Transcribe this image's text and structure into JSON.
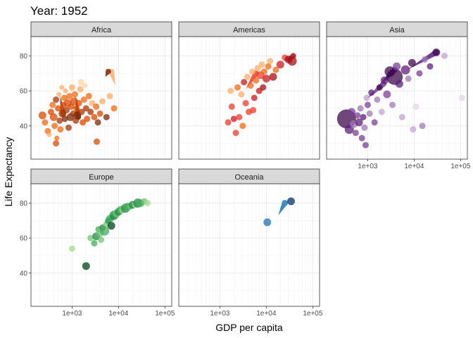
{
  "chart_data": {
    "type": "scatter",
    "title": "Year: 1952",
    "xlabel": "GDP per capita",
    "ylabel": "Life Expectancy",
    "x_scale": "log10",
    "xlim": [
      130,
      140000
    ],
    "ylim": [
      21,
      91
    ],
    "x_ticks": [
      1000,
      10000,
      100000
    ],
    "x_tick_labels": [
      "1e+03",
      "1e+04",
      "1e+05"
    ],
    "y_ticks": [
      40,
      60,
      80
    ],
    "y_tick_labels": [
      "40",
      "60",
      "80"
    ],
    "grid": true,
    "facets": [
      {
        "name": "Africa",
        "palette": [
          "#fdd49e",
          "#fdae6b",
          "#f16913",
          "#d94801",
          "#a63603",
          "#7f2704"
        ],
        "points": [
          [
            230,
            46,
            4,
            3
          ],
          [
            260,
            42,
            3,
            2
          ],
          [
            300,
            37,
            3,
            2
          ],
          [
            320,
            35,
            2,
            1
          ],
          [
            350,
            48,
            3,
            3
          ],
          [
            380,
            52,
            3,
            2
          ],
          [
            400,
            45,
            4,
            3
          ],
          [
            420,
            40,
            3,
            2
          ],
          [
            450,
            55,
            3,
            4
          ],
          [
            470,
            33,
            2,
            2
          ],
          [
            500,
            50,
            3,
            3
          ],
          [
            520,
            58,
            2,
            1
          ],
          [
            540,
            43,
            3,
            4
          ],
          [
            560,
            38,
            3,
            2
          ],
          [
            600,
            62,
            2,
            1
          ],
          [
            620,
            47,
            4,
            4
          ],
          [
            650,
            52,
            3,
            3
          ],
          [
            680,
            56,
            3,
            2
          ],
          [
            700,
            44,
            3,
            5
          ],
          [
            720,
            60,
            2,
            1
          ],
          [
            760,
            49,
            3,
            4
          ],
          [
            800,
            53,
            4,
            3
          ],
          [
            840,
            39,
            3,
            4
          ],
          [
            880,
            57,
            3,
            2
          ],
          [
            920,
            45,
            4,
            5
          ],
          [
            960,
            51,
            3,
            3
          ],
          [
            1000,
            62,
            3,
            1
          ],
          [
            1050,
            47,
            3,
            4
          ],
          [
            1100,
            54,
            4,
            3
          ],
          [
            1150,
            58,
            3,
            2
          ],
          [
            1200,
            43,
            3,
            4
          ],
          [
            1250,
            50,
            3,
            3
          ],
          [
            1300,
            46,
            4,
            5
          ],
          [
            1400,
            53,
            3,
            3
          ],
          [
            1500,
            61,
            3,
            1
          ],
          [
            1600,
            48,
            3,
            4
          ],
          [
            1700,
            42,
            3,
            3
          ],
          [
            1800,
            55,
            3,
            2
          ],
          [
            1900,
            63,
            2,
            0
          ],
          [
            2000,
            50,
            3,
            4
          ],
          [
            2100,
            44,
            3,
            3
          ],
          [
            2300,
            57,
            3,
            2
          ],
          [
            2500,
            48,
            3,
            4
          ],
          [
            2700,
            53,
            3,
            1
          ],
          [
            3000,
            45,
            3,
            3
          ],
          [
            3300,
            51,
            3,
            2
          ],
          [
            3600,
            42,
            3,
            5
          ],
          [
            4000,
            47,
            3,
            3
          ],
          [
            4500,
            54,
            3,
            1
          ],
          [
            5500,
            45,
            3,
            5
          ],
          [
            6500,
            57,
            3,
            1
          ],
          [
            8000,
            50,
            3,
            2
          ],
          [
            1550,
            65,
            3,
            0
          ],
          [
            3400,
            31,
            3,
            3
          ],
          [
            450,
            30,
            3,
            3
          ]
        ]
      },
      {
        "name": "Americas",
        "palette": [
          "#fdd49e",
          "#fdae6b",
          "#f16913",
          "#ef3b2c",
          "#cb181d",
          "#a50f15"
        ],
        "points": [
          [
            1500,
            42,
            3,
            3
          ],
          [
            1700,
            60,
            3,
            1
          ],
          [
            1800,
            51,
            3,
            3
          ],
          [
            2200,
            36,
            3,
            3
          ],
          [
            2400,
            62,
            3,
            2
          ],
          [
            2600,
            45,
            3,
            3
          ],
          [
            2900,
            58,
            3,
            1
          ],
          [
            3100,
            40,
            3,
            2
          ],
          [
            3300,
            65,
            3,
            4
          ],
          [
            3600,
            53,
            3,
            3
          ],
          [
            3900,
            68,
            3,
            1
          ],
          [
            4200,
            48,
            3,
            3
          ],
          [
            4600,
            63,
            3,
            2
          ],
          [
            5000,
            71,
            3,
            1
          ],
          [
            5500,
            56,
            3,
            4
          ],
          [
            6000,
            66,
            3,
            2
          ],
          [
            6500,
            73,
            3,
            1
          ],
          [
            7000,
            60,
            3,
            4
          ],
          [
            7500,
            69,
            4,
            3
          ],
          [
            8000,
            75,
            3,
            1
          ],
          [
            8500,
            62,
            3,
            5
          ],
          [
            9000,
            71,
            3,
            2
          ],
          [
            10000,
            67,
            4,
            4
          ],
          [
            11000,
            74,
            3,
            2
          ],
          [
            12000,
            77,
            3,
            1
          ],
          [
            14000,
            68,
            4,
            5
          ],
          [
            16000,
            72,
            3,
            2
          ],
          [
            20000,
            75,
            4,
            4
          ],
          [
            25000,
            79,
            3,
            3
          ],
          [
            30000,
            78,
            4,
            5
          ],
          [
            36000,
            77,
            5,
            5
          ],
          [
            2000,
            44,
            3,
            4
          ],
          [
            5200,
            49,
            3,
            3
          ]
        ]
      },
      {
        "name": "Asia",
        "palette": [
          "#e5d3ea",
          "#c2a5cf",
          "#9e78b5",
          "#7b3f97",
          "#5e1f7a",
          "#3f0a4f"
        ],
        "points": [
          [
            350,
            44,
            12,
            5
          ],
          [
            400,
            38,
            5,
            4
          ],
          [
            450,
            48,
            4,
            3
          ],
          [
            500,
            41,
            4,
            2
          ],
          [
            550,
            36,
            3,
            3
          ],
          [
            600,
            46,
            3,
            3
          ],
          [
            650,
            42,
            4,
            4
          ],
          [
            700,
            50,
            3,
            2
          ],
          [
            750,
            33,
            3,
            3
          ],
          [
            800,
            45,
            3,
            4
          ],
          [
            850,
            39,
            3,
            2
          ],
          [
            900,
            29,
            3,
            3
          ],
          [
            950,
            56,
            3,
            1
          ],
          [
            1000,
            52,
            3,
            3
          ],
          [
            1100,
            47,
            3,
            2
          ],
          [
            1200,
            59,
            3,
            4
          ],
          [
            1400,
            42,
            3,
            3
          ],
          [
            1600,
            55,
            3,
            2
          ],
          [
            1800,
            62,
            3,
            5
          ],
          [
            2000,
            48,
            3,
            1
          ],
          [
            2300,
            66,
            4,
            4
          ],
          [
            2600,
            58,
            4,
            3
          ],
          [
            3000,
            71,
            6,
            5
          ],
          [
            3400,
            52,
            3,
            2
          ],
          [
            3800,
            68,
            10,
            5
          ],
          [
            4200,
            74,
            4,
            3
          ],
          [
            4800,
            64,
            4,
            4
          ],
          [
            5500,
            45,
            3,
            1
          ],
          [
            6500,
            72,
            5,
            4
          ],
          [
            7500,
            67,
            3,
            2
          ],
          [
            9000,
            76,
            4,
            5
          ],
          [
            11000,
            51,
            3,
            0
          ],
          [
            13000,
            70,
            3,
            3
          ],
          [
            17000,
            78,
            3,
            2
          ],
          [
            22000,
            74,
            3,
            4
          ],
          [
            30000,
            82,
            4,
            5
          ],
          [
            45000,
            80,
            3,
            1
          ],
          [
            108000,
            56,
            3,
            0
          ],
          [
            15000,
            40,
            3,
            2
          ],
          [
            9500,
            38,
            3,
            1
          ]
        ]
      },
      {
        "name": "Europe",
        "palette": [
          "#d9f0d3",
          "#a6db8e",
          "#74c476",
          "#41ab5d",
          "#238b45",
          "#00441b"
        ],
        "points": [
          [
            1000,
            54,
            3,
            1
          ],
          [
            2000,
            44,
            4,
            5
          ],
          [
            2500,
            60,
            3,
            2
          ],
          [
            3000,
            57,
            3,
            3
          ],
          [
            3300,
            61,
            4,
            4
          ],
          [
            3700,
            65,
            3,
            3
          ],
          [
            4000,
            63,
            4,
            2
          ],
          [
            4500,
            66,
            3,
            4
          ],
          [
            5000,
            64,
            5,
            3
          ],
          [
            5500,
            68,
            3,
            2
          ],
          [
            6000,
            70,
            3,
            4
          ],
          [
            6500,
            71,
            4,
            3
          ],
          [
            7000,
            67,
            4,
            5
          ],
          [
            7500,
            72,
            3,
            3
          ],
          [
            8000,
            73,
            5,
            4
          ],
          [
            9000,
            74,
            4,
            2
          ],
          [
            10000,
            75,
            4,
            4
          ],
          [
            11000,
            76,
            4,
            3
          ],
          [
            12000,
            76,
            3,
            1
          ],
          [
            14000,
            77,
            5,
            4
          ],
          [
            16000,
            78,
            4,
            3
          ],
          [
            18000,
            78,
            3,
            2
          ],
          [
            20000,
            79,
            4,
            4
          ],
          [
            23000,
            79,
            3,
            1
          ],
          [
            26000,
            80,
            5,
            4
          ],
          [
            30000,
            80,
            4,
            3
          ],
          [
            36000,
            81,
            3,
            2
          ],
          [
            42000,
            80,
            3,
            1
          ],
          [
            4200,
            59,
            3,
            2
          ]
        ]
      },
      {
        "name": "Oceania",
        "palette": [
          "#c6dbef",
          "#9ecae1",
          "#6baed6",
          "#4292c6",
          "#2171b5",
          "#08306b"
        ],
        "points": [
          [
            10500,
            69,
            4,
            4
          ],
          [
            25000,
            80,
            3,
            3
          ],
          [
            34000,
            81,
            4,
            5
          ]
        ]
      }
    ],
    "motion_trails": [
      {
        "facet": "Africa",
        "x": [
          1200,
          1350
        ],
        "y": [
          57,
          45
        ],
        "color_index": 5
      },
      {
        "facet": "Africa",
        "x": [
          550,
          640
        ],
        "y": [
          57,
          47
        ],
        "color_index": 4
      },
      {
        "facet": "Africa",
        "x": [
          8500,
          7000
        ],
        "y": [
          63,
          71
        ],
        "color_index": 1
      },
      {
        "facet": "Africa",
        "x": [
          5200,
          6000
        ],
        "y": [
          68,
          71
        ],
        "color_index": 5
      },
      {
        "facet": "Americas",
        "x": [
          3600,
          6000
        ],
        "y": [
          61,
          70
        ],
        "color_index": 3
      },
      {
        "facet": "Americas",
        "x": [
          26000,
          38000
        ],
        "y": [
          77,
          80
        ],
        "color_index": 5
      },
      {
        "facet": "Asia",
        "x": [
          1600,
          3800
        ],
        "y": [
          62,
          72
        ],
        "color_index": 4
      },
      {
        "facet": "Asia",
        "x": [
          900,
          2200
        ],
        "y": [
          55,
          64
        ],
        "color_index": 3
      },
      {
        "facet": "Asia",
        "x": [
          7000,
          30000
        ],
        "y": [
          72,
          82
        ],
        "color_index": 4
      },
      {
        "facet": "Europe",
        "x": [
          8000,
          16000
        ],
        "y": [
          74,
          78
        ],
        "color_index": 0
      },
      {
        "facet": "Europe",
        "x": [
          5000,
          9000
        ],
        "y": [
          68,
          74
        ],
        "color_index": 3
      },
      {
        "facet": "Oceania",
        "x": [
          18000,
          25000
        ],
        "y": [
          73,
          80
        ],
        "color_index": 4
      }
    ]
  }
}
